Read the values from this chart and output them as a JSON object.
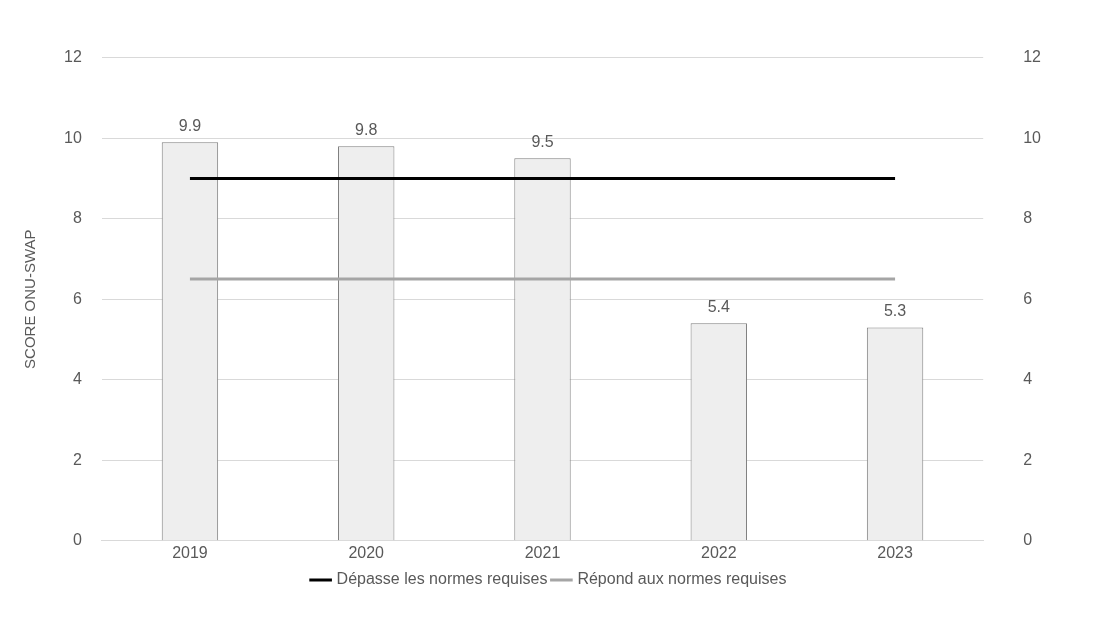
{
  "chart_data": {
    "type": "bar",
    "ylabel": "SCORE ONU-SWAP",
    "categories": [
      "2019",
      "2020",
      "2021",
      "2022",
      "2023"
    ],
    "series": [
      {
        "color": "#eeeeee",
        "values": [
          9.9,
          9.8,
          9.5,
          5.4,
          5.3
        ],
        "value_labels": [
          "9.9",
          "9.8",
          "9.5",
          "5.4",
          "5.3"
        ]
      },
      {
        "type": "line",
        "name": "Dépasse les normes requises",
        "color": "#000000",
        "values": [
          9,
          9,
          9,
          9,
          9
        ]
      },
      {
        "type": "line",
        "name": "Répond aux normes requises",
        "color": "#a5a5a5",
        "values": [
          6.5,
          6.5,
          6.5,
          6.5,
          6.5
        ]
      }
    ],
    "ylim": [
      0,
      12
    ],
    "yticks": [
      0,
      2,
      4,
      6,
      8,
      10,
      12
    ],
    "y2lim": [
      0,
      12
    ],
    "y2ticks": [
      0,
      2,
      4,
      6,
      8,
      10,
      12
    ],
    "grid": "y",
    "legend": "bottom",
    "marker": "none",
    "line_style": "solid"
  }
}
